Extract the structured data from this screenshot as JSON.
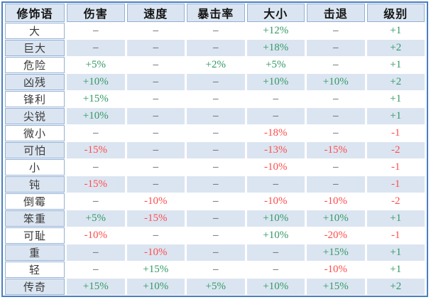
{
  "table": {
    "columns": [
      "修饰语",
      "伤害",
      "速度",
      "暴击率",
      "大小",
      "击退",
      "级别"
    ],
    "rows": [
      {
        "name": "大",
        "values": [
          "–",
          "–",
          "–",
          "+12%",
          "–",
          "+1"
        ]
      },
      {
        "name": "巨大",
        "values": [
          "–",
          "–",
          "–",
          "+18%",
          "–",
          "+2"
        ]
      },
      {
        "name": "危险",
        "values": [
          "+5%",
          "–",
          "+2%",
          "+5%",
          "–",
          "+1"
        ]
      },
      {
        "name": "凶残",
        "values": [
          "+10%",
          "–",
          "–",
          "+10%",
          "+10%",
          "+2"
        ]
      },
      {
        "name": "锋利",
        "values": [
          "+15%",
          "–",
          "–",
          "–",
          "–",
          "+1"
        ]
      },
      {
        "name": "尖锐",
        "values": [
          "+10%",
          "–",
          "–",
          "–",
          "–",
          "+1"
        ]
      },
      {
        "name": "微小",
        "values": [
          "–",
          "–",
          "–",
          "-18%",
          "–",
          "-1"
        ]
      },
      {
        "name": "可怕",
        "values": [
          "-15%",
          "–",
          "–",
          "-13%",
          "-15%",
          "-2"
        ]
      },
      {
        "name": "小",
        "values": [
          "–",
          "–",
          "–",
          "-10%",
          "–",
          "-1"
        ]
      },
      {
        "name": "钝",
        "values": [
          "-15%",
          "–",
          "–",
          "–",
          "–",
          "-1"
        ]
      },
      {
        "name": "倒霉",
        "values": [
          "–",
          "-10%",
          "–",
          "-10%",
          "-10%",
          "-2"
        ]
      },
      {
        "name": "笨重",
        "values": [
          "+5%",
          "-15%",
          "–",
          "+10%",
          "+10%",
          "+1"
        ]
      },
      {
        "name": "可耻",
        "values": [
          "-10%",
          "–",
          "–",
          "+10%",
          "-20%",
          "-1"
        ]
      },
      {
        "name": "重",
        "values": [
          "–",
          "-10%",
          "–",
          "–",
          "+15%",
          "+1"
        ]
      },
      {
        "name": "轻",
        "values": [
          "–",
          "+15%",
          "–",
          "–",
          "-10%",
          "+1"
        ]
      },
      {
        "name": "传奇",
        "values": [
          "+15%",
          "+10%",
          "+5%",
          "+10%",
          "+15%",
          "+2"
        ]
      }
    ],
    "colors": {
      "outer_border": "#4a7ebf",
      "inner_border": "#93b1d7",
      "stripe_bg": "#dbe5f1",
      "positive": "#339966",
      "negative": "#ff4d4d",
      "dash": "#4d4d4d"
    }
  }
}
